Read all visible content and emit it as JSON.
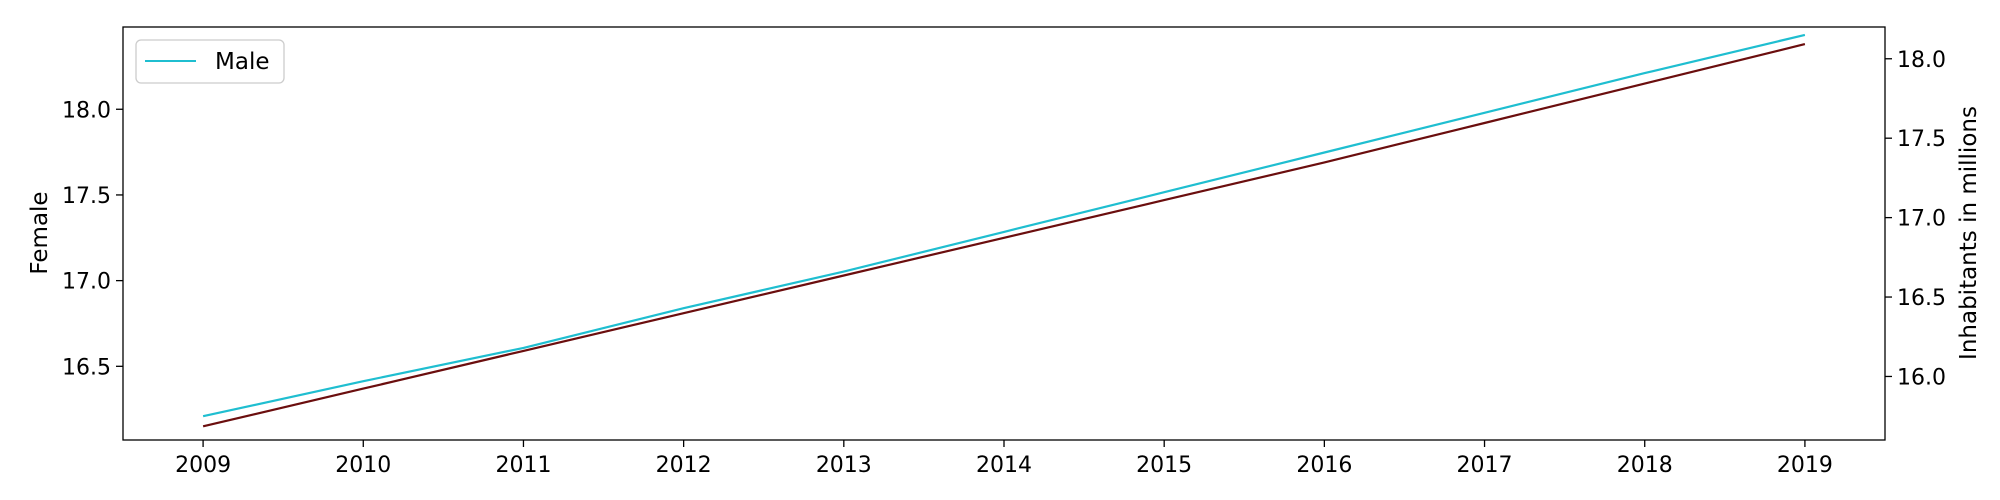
{
  "chart_data": {
    "type": "line",
    "title": "",
    "x": [
      2009,
      2010,
      2011,
      2012,
      2013,
      2014,
      2015,
      2016,
      2017,
      2018,
      2019
    ],
    "xticks": [
      "2009",
      "2010",
      "2011",
      "2012",
      "2013",
      "2014",
      "2015",
      "2016",
      "2017",
      "2018",
      "2019"
    ],
    "xlim": [
      2008.5,
      2019.5
    ],
    "left_axis": {
      "label": "Female",
      "ylim": [
        16.07,
        18.48
      ],
      "ticks": [
        "16.5",
        "17.0",
        "17.5",
        "18.0"
      ],
      "tick_values": [
        16.5,
        17.0,
        17.5,
        18.0
      ]
    },
    "right_axis": {
      "label": "Inhabitants in millions",
      "ylim": [
        15.6,
        18.2
      ],
      "ticks": [
        "16.0",
        "16.5",
        "17.0",
        "17.5",
        "18.0"
      ],
      "tick_values": [
        16.0,
        16.5,
        17.0,
        17.5,
        18.0
      ]
    },
    "series": [
      {
        "name": "",
        "axis": "left",
        "color": "#6b0e0e",
        "values": [
          16.15,
          16.37,
          16.59,
          16.81,
          17.03,
          17.25,
          17.47,
          17.69,
          17.92,
          18.15,
          18.38
        ]
      },
      {
        "name": "Male",
        "axis": "right",
        "color": "#1fbed0",
        "values": [
          15.75,
          15.97,
          16.18,
          16.43,
          16.66,
          16.91,
          17.16,
          17.41,
          17.66,
          17.91,
          18.15
        ]
      }
    ],
    "legend": {
      "placement": "top-left",
      "entries": [
        "Male"
      ]
    },
    "grid": false
  }
}
